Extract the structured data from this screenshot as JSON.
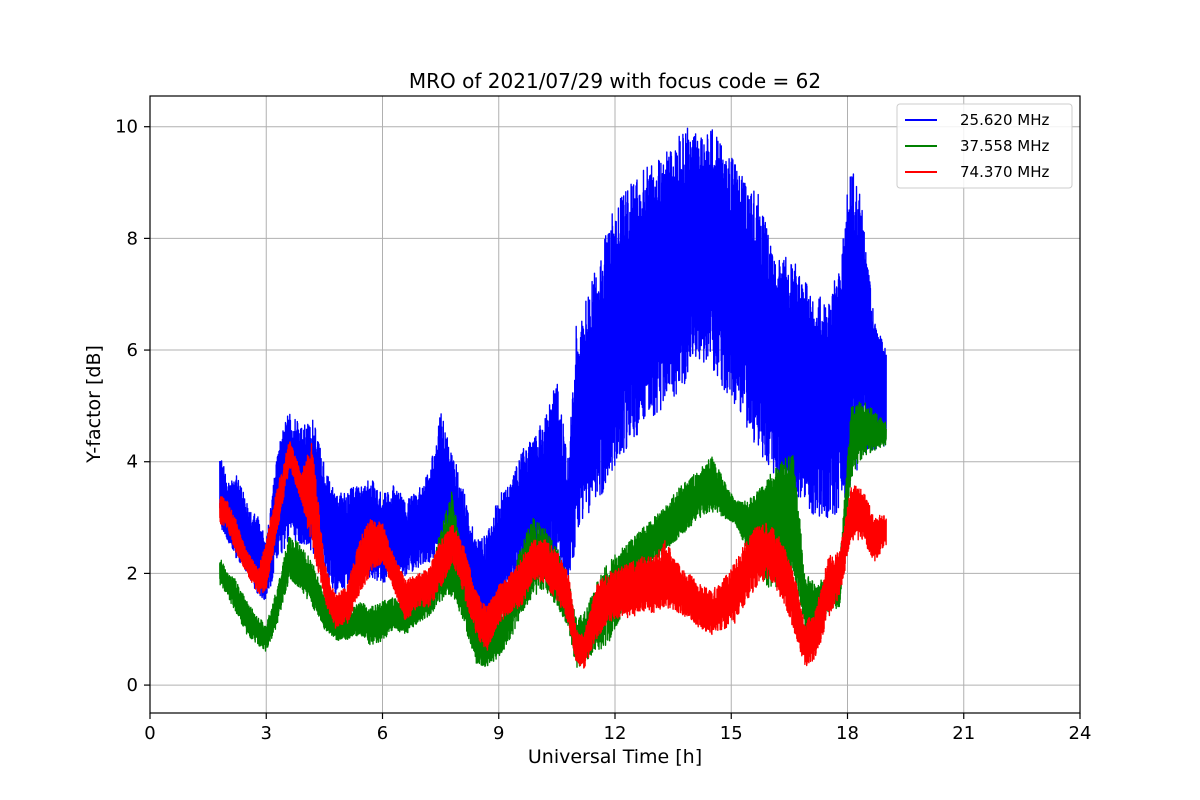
{
  "chart_data": {
    "type": "line",
    "title": "MRO of 2021/07/29 with focus code = 62",
    "xlabel": "Universal Time [h]",
    "ylabel": "Y-factor [dB]",
    "xlim": [
      0,
      24
    ],
    "ylim": [
      -0.5,
      10.55
    ],
    "xticks": [
      0,
      3,
      6,
      9,
      12,
      15,
      18,
      21,
      24
    ],
    "yticks": [
      0,
      2,
      4,
      6,
      8,
      10
    ],
    "grid": true,
    "legend_position": "top-right",
    "series": [
      {
        "name": "25.620 MHz",
        "color": "#0000ff",
        "x": [
          1.8,
          2.0,
          2.2,
          2.5,
          2.8,
          3.0,
          3.3,
          3.6,
          3.9,
          4.2,
          4.5,
          4.8,
          5.1,
          5.4,
          5.7,
          6.0,
          6.3,
          6.6,
          6.9,
          7.2,
          7.5,
          7.8,
          8.1,
          8.4,
          8.7,
          9.0,
          9.3,
          9.6,
          9.9,
          10.2,
          10.5,
          10.8,
          11.0,
          11.2,
          11.5,
          11.8,
          12.1,
          12.4,
          12.7,
          13.0,
          13.3,
          13.6,
          13.9,
          14.2,
          14.5,
          14.8,
          15.1,
          15.4,
          15.7,
          16.0,
          16.3,
          16.6,
          16.9,
          17.2,
          17.5,
          17.8,
          18.1,
          18.4,
          18.7,
          19.0
        ],
        "low": [
          2.8,
          2.6,
          2.3,
          2.0,
          1.6,
          1.5,
          2.2,
          2.6,
          2.5,
          2.3,
          1.9,
          1.6,
          1.7,
          2.0,
          1.9,
          1.8,
          2.0,
          1.9,
          2.1,
          2.2,
          2.3,
          2.2,
          1.7,
          1.1,
          1.0,
          1.4,
          1.8,
          2.0,
          2.1,
          2.2,
          2.0,
          1.8,
          2.5,
          3.0,
          3.2,
          3.6,
          4.0,
          4.3,
          4.6,
          4.8,
          5.0,
          5.2,
          5.5,
          5.8,
          5.7,
          5.3,
          5.0,
          4.6,
          4.2,
          3.8,
          3.5,
          3.3,
          3.1,
          3.0,
          3.0,
          3.1,
          3.6,
          4.0,
          4.2,
          4.3
        ],
        "high": [
          4.3,
          3.6,
          3.8,
          3.3,
          3.0,
          2.6,
          4.2,
          5.0,
          4.6,
          4.8,
          4.0,
          3.4,
          3.5,
          3.6,
          3.7,
          3.4,
          3.6,
          3.3,
          3.5,
          3.8,
          4.9,
          4.2,
          3.5,
          2.6,
          2.7,
          3.4,
          3.6,
          4.2,
          4.5,
          4.8,
          5.5,
          4.0,
          6.5,
          6.8,
          7.5,
          8.3,
          8.7,
          9.0,
          9.2,
          9.4,
          9.6,
          9.8,
          10.0,
          9.8,
          10.0,
          9.6,
          9.4,
          9.0,
          8.8,
          8.1,
          7.7,
          7.6,
          7.3,
          7.0,
          7.0,
          7.5,
          9.6,
          8.5,
          6.5,
          6.0
        ]
      },
      {
        "name": "37.558 MHz",
        "color": "#008000",
        "x": [
          1.8,
          2.0,
          2.2,
          2.5,
          2.8,
          3.0,
          3.3,
          3.6,
          3.9,
          4.2,
          4.5,
          4.8,
          5.1,
          5.4,
          5.7,
          6.0,
          6.3,
          6.6,
          6.9,
          7.2,
          7.5,
          7.8,
          8.1,
          8.4,
          8.7,
          9.0,
          9.3,
          9.6,
          9.9,
          10.2,
          10.5,
          10.8,
          11.0,
          11.2,
          11.5,
          11.8,
          12.1,
          12.4,
          12.7,
          13.0,
          13.3,
          13.6,
          13.9,
          14.2,
          14.5,
          14.8,
          15.1,
          15.4,
          15.7,
          16.0,
          16.3,
          16.6,
          16.9,
          17.2,
          17.5,
          17.8,
          18.1,
          18.4,
          18.7,
          19.0
        ],
        "low": [
          1.8,
          1.6,
          1.3,
          0.9,
          0.7,
          0.6,
          1.1,
          1.9,
          1.7,
          1.4,
          1.0,
          0.8,
          0.8,
          0.9,
          0.7,
          0.8,
          1.0,
          0.9,
          1.1,
          1.2,
          1.5,
          1.6,
          1.1,
          0.4,
          0.3,
          0.5,
          0.8,
          1.3,
          1.6,
          1.7,
          1.4,
          1.0,
          0.3,
          0.4,
          0.6,
          0.7,
          1.1,
          1.7,
          2.0,
          2.2,
          2.4,
          2.6,
          2.8,
          3.0,
          3.1,
          3.0,
          2.9,
          2.4,
          2.0,
          1.7,
          1.8,
          2.0,
          1.0,
          0.9,
          1.3,
          1.4,
          3.7,
          4.1,
          4.2,
          4.3
        ],
        "high": [
          2.3,
          2.0,
          1.9,
          1.5,
          1.2,
          1.1,
          1.8,
          2.7,
          2.5,
          2.2,
          1.6,
          1.3,
          1.3,
          1.5,
          1.4,
          1.5,
          1.6,
          1.5,
          1.7,
          1.9,
          2.8,
          3.5,
          2.1,
          1.2,
          0.9,
          1.2,
          1.7,
          2.6,
          3.0,
          2.8,
          2.5,
          1.9,
          1.2,
          1.3,
          1.8,
          2.2,
          2.4,
          2.6,
          2.8,
          3.0,
          3.2,
          3.5,
          3.7,
          3.9,
          4.1,
          3.7,
          3.3,
          3.3,
          3.5,
          3.8,
          4.0,
          4.2,
          2.0,
          1.8,
          2.0,
          2.2,
          5.0,
          5.1,
          4.9,
          4.7
        ]
      },
      {
        "name": "74.370 MHz",
        "color": "#ff0000",
        "x": [
          1.8,
          2.0,
          2.2,
          2.5,
          2.8,
          3.0,
          3.3,
          3.6,
          3.9,
          4.2,
          4.5,
          4.8,
          5.1,
          5.4,
          5.7,
          6.0,
          6.3,
          6.6,
          6.9,
          7.2,
          7.5,
          7.8,
          8.1,
          8.4,
          8.7,
          9.0,
          9.3,
          9.6,
          9.9,
          10.2,
          10.5,
          10.8,
          11.0,
          11.2,
          11.5,
          11.8,
          12.1,
          12.4,
          12.7,
          13.0,
          13.3,
          13.6,
          13.9,
          14.2,
          14.5,
          14.8,
          15.1,
          15.4,
          15.7,
          16.0,
          16.3,
          16.6,
          16.9,
          17.2,
          17.5,
          17.8,
          18.1,
          18.4,
          18.7,
          19.0
        ],
        "low": [
          2.9,
          2.8,
          2.4,
          2.0,
          1.6,
          1.7,
          2.8,
          3.9,
          3.3,
          2.4,
          1.5,
          1.0,
          1.1,
          1.6,
          2.0,
          2.2,
          1.7,
          1.1,
          1.4,
          1.4,
          1.7,
          2.2,
          1.6,
          0.9,
          0.6,
          1.1,
          1.3,
          1.4,
          1.9,
          1.8,
          1.5,
          1.1,
          0.4,
          0.3,
          0.8,
          1.1,
          1.2,
          1.2,
          1.3,
          1.3,
          1.4,
          1.3,
          1.2,
          1.0,
          0.9,
          1.0,
          1.1,
          1.5,
          1.8,
          1.9,
          1.5,
          1.0,
          0.3,
          0.5,
          1.2,
          1.6,
          2.6,
          2.6,
          2.2,
          2.5
        ],
        "high": [
          3.4,
          3.3,
          3.0,
          2.4,
          2.1,
          2.6,
          3.6,
          4.4,
          3.8,
          4.4,
          2.2,
          1.6,
          1.8,
          2.6,
          3.0,
          2.9,
          2.3,
          1.9,
          2.0,
          2.1,
          2.6,
          2.9,
          2.5,
          1.7,
          1.4,
          1.8,
          2.0,
          2.3,
          2.6,
          2.6,
          2.4,
          2.0,
          1.0,
          0.9,
          1.8,
          2.0,
          2.1,
          2.2,
          2.3,
          2.3,
          2.6,
          2.2,
          2.0,
          1.8,
          1.7,
          1.9,
          2.2,
          2.6,
          2.9,
          2.9,
          2.6,
          2.1,
          1.1,
          1.4,
          2.3,
          2.4,
          3.6,
          3.5,
          3.0,
          3.1
        ]
      }
    ]
  }
}
